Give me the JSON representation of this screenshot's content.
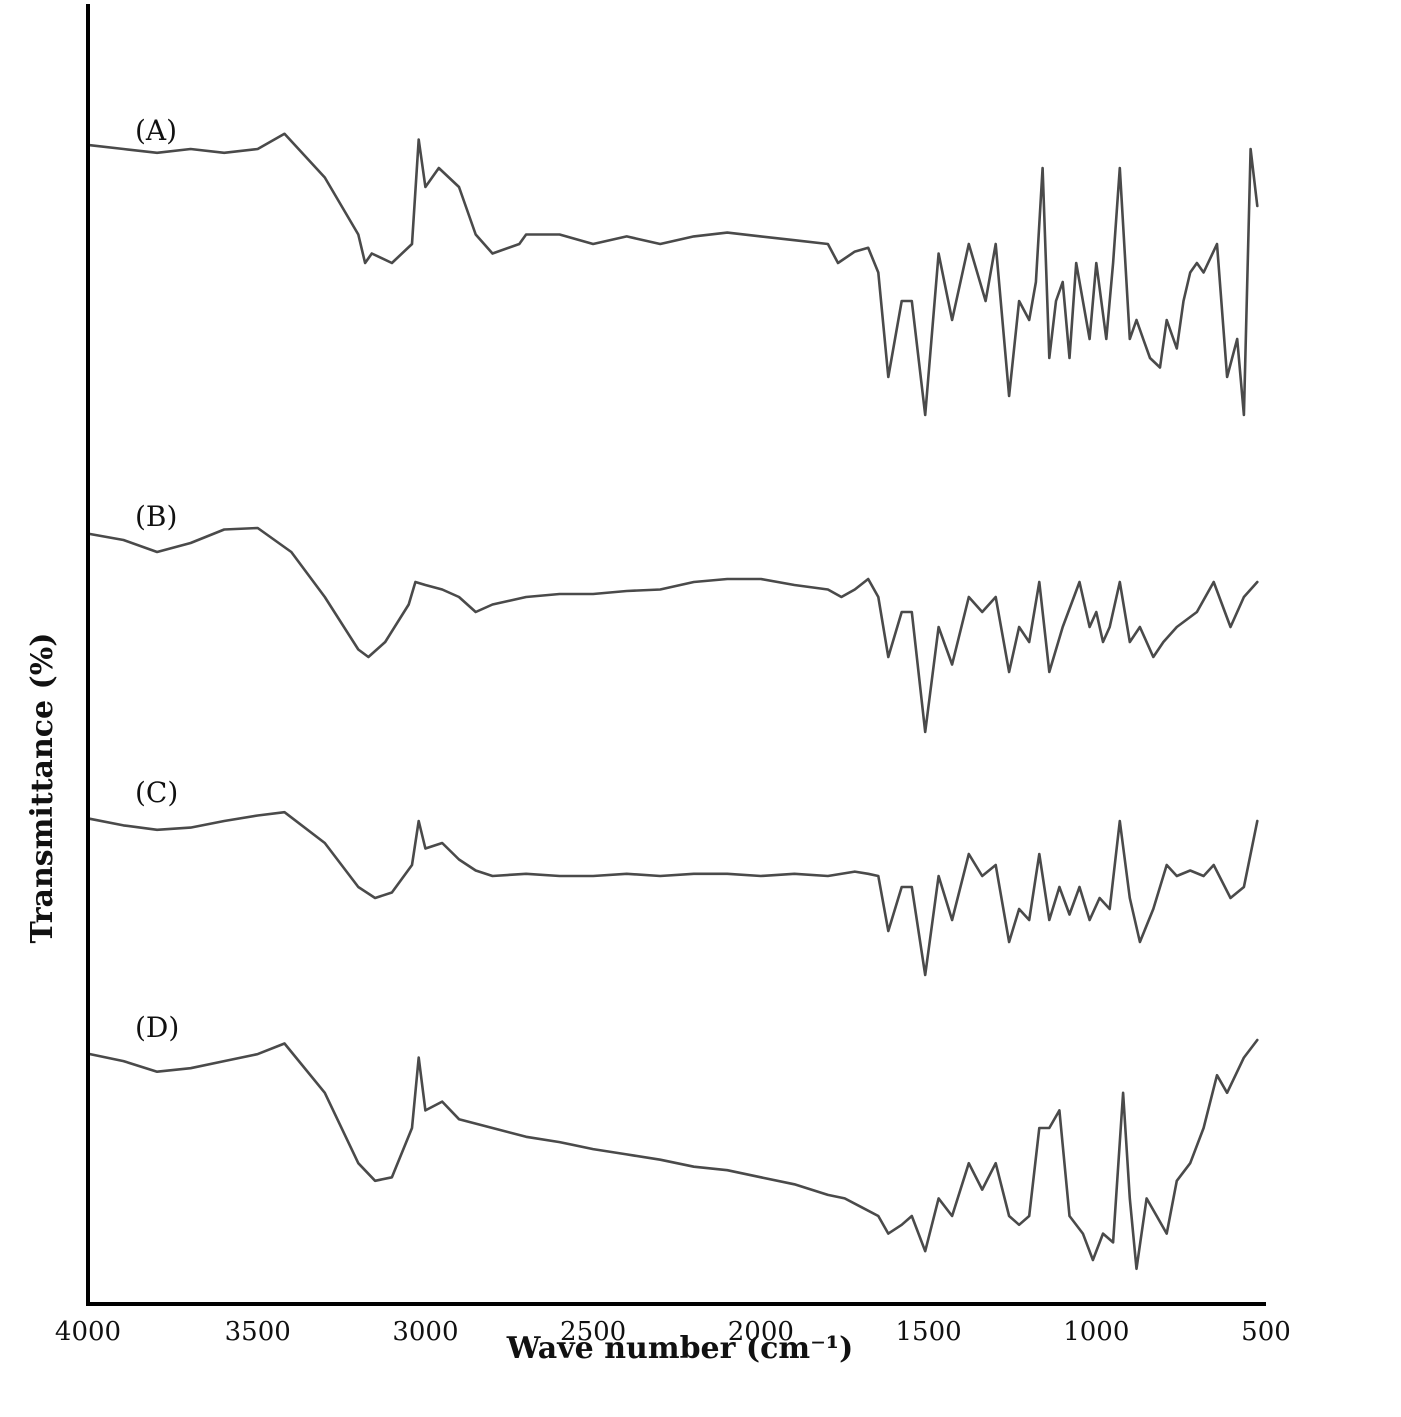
{
  "chart_data": {
    "type": "line",
    "xlabel": "Wave number (cm⁻¹)",
    "ylabel": "Transmittance (%)",
    "xlim": [
      4000,
      500
    ],
    "x_reversed": true,
    "x_ticks": [
      "4000",
      "3500",
      "3000",
      "2500",
      "2000",
      "1500",
      "1000",
      "500"
    ],
    "y_ticks_shown": false,
    "grid": false,
    "series": [
      {
        "name": "(A)",
        "points": [
          [
            4000,
            0.92
          ],
          [
            3900,
            0.9
          ],
          [
            3800,
            0.88
          ],
          [
            3700,
            0.9
          ],
          [
            3600,
            0.88
          ],
          [
            3500,
            0.9
          ],
          [
            3420,
            0.98
          ],
          [
            3300,
            0.75
          ],
          [
            3200,
            0.45
          ],
          [
            3180,
            0.3
          ],
          [
            3160,
            0.35
          ],
          [
            3100,
            0.3
          ],
          [
            3040,
            0.4
          ],
          [
            3020,
            0.95
          ],
          [
            3000,
            0.7
          ],
          [
            2960,
            0.8
          ],
          [
            2900,
            0.7
          ],
          [
            2850,
            0.45
          ],
          [
            2800,
            0.35
          ],
          [
            2720,
            0.4
          ],
          [
            2700,
            0.45
          ],
          [
            2600,
            0.45
          ],
          [
            2500,
            0.4
          ],
          [
            2400,
            0.44
          ],
          [
            2300,
            0.4
          ],
          [
            2200,
            0.44
          ],
          [
            2100,
            0.46
          ],
          [
            2000,
            0.44
          ],
          [
            1900,
            0.42
          ],
          [
            1800,
            0.4
          ],
          [
            1770,
            0.3
          ],
          [
            1720,
            0.36
          ],
          [
            1680,
            0.38
          ],
          [
            1650,
            0.25
          ],
          [
            1620,
            -0.3
          ],
          [
            1580,
            0.1
          ],
          [
            1550,
            0.1
          ],
          [
            1510,
            -0.5
          ],
          [
            1470,
            0.35
          ],
          [
            1430,
            0.0
          ],
          [
            1380,
            0.4
          ],
          [
            1330,
            0.1
          ],
          [
            1300,
            0.4
          ],
          [
            1260,
            -0.4
          ],
          [
            1230,
            0.1
          ],
          [
            1200,
            0.0
          ],
          [
            1180,
            0.2
          ],
          [
            1160,
            0.8
          ],
          [
            1140,
            -0.2
          ],
          [
            1120,
            0.1
          ],
          [
            1100,
            0.2
          ],
          [
            1080,
            -0.2
          ],
          [
            1060,
            0.3
          ],
          [
            1020,
            -0.1
          ],
          [
            1000,
            0.3
          ],
          [
            970,
            -0.1
          ],
          [
            950,
            0.3
          ],
          [
            930,
            0.8
          ],
          [
            900,
            -0.1
          ],
          [
            880,
            0.0
          ],
          [
            860,
            -0.1
          ],
          [
            840,
            -0.2
          ],
          [
            810,
            -0.25
          ],
          [
            790,
            0.0
          ],
          [
            760,
            -0.15
          ],
          [
            740,
            0.1
          ],
          [
            720,
            0.25
          ],
          [
            700,
            0.3
          ],
          [
            680,
            0.25
          ],
          [
            640,
            0.4
          ],
          [
            610,
            -0.3
          ],
          [
            580,
            -0.1
          ],
          [
            560,
            -0.5
          ],
          [
            540,
            0.9
          ],
          [
            520,
            0.6
          ]
        ]
      },
      {
        "name": "(B)",
        "points": [
          [
            4000,
            0.92
          ],
          [
            3900,
            0.88
          ],
          [
            3800,
            0.8
          ],
          [
            3700,
            0.86
          ],
          [
            3600,
            0.95
          ],
          [
            3500,
            0.96
          ],
          [
            3400,
            0.8
          ],
          [
            3300,
            0.5
          ],
          [
            3200,
            0.15
          ],
          [
            3170,
            0.1
          ],
          [
            3120,
            0.2
          ],
          [
            3050,
            0.45
          ],
          [
            3030,
            0.6
          ],
          [
            3000,
            0.58
          ],
          [
            2950,
            0.55
          ],
          [
            2900,
            0.5
          ],
          [
            2850,
            0.4
          ],
          [
            2800,
            0.45
          ],
          [
            2700,
            0.5
          ],
          [
            2600,
            0.52
          ],
          [
            2500,
            0.52
          ],
          [
            2400,
            0.54
          ],
          [
            2300,
            0.55
          ],
          [
            2200,
            0.6
          ],
          [
            2100,
            0.62
          ],
          [
            2000,
            0.62
          ],
          [
            1900,
            0.58
          ],
          [
            1800,
            0.55
          ],
          [
            1760,
            0.5
          ],
          [
            1720,
            0.55
          ],
          [
            1680,
            0.62
          ],
          [
            1650,
            0.5
          ],
          [
            1620,
            0.1
          ],
          [
            1580,
            0.4
          ],
          [
            1550,
            0.4
          ],
          [
            1510,
            -0.4
          ],
          [
            1470,
            0.3
          ],
          [
            1430,
            0.05
          ],
          [
            1380,
            0.5
          ],
          [
            1340,
            0.4
          ],
          [
            1300,
            0.5
          ],
          [
            1260,
            0.0
          ],
          [
            1230,
            0.3
          ],
          [
            1200,
            0.2
          ],
          [
            1170,
            0.6
          ],
          [
            1140,
            0.0
          ],
          [
            1100,
            0.3
          ],
          [
            1050,
            0.6
          ],
          [
            1020,
            0.3
          ],
          [
            1000,
            0.4
          ],
          [
            980,
            0.2
          ],
          [
            960,
            0.3
          ],
          [
            930,
            0.6
          ],
          [
            900,
            0.2
          ],
          [
            870,
            0.3
          ],
          [
            830,
            0.1
          ],
          [
            800,
            0.2
          ],
          [
            760,
            0.3
          ],
          [
            700,
            0.4
          ],
          [
            650,
            0.6
          ],
          [
            600,
            0.3
          ],
          [
            560,
            0.5
          ],
          [
            520,
            0.6
          ]
        ]
      },
      {
        "name": "(C)",
        "points": [
          [
            4000,
            0.92
          ],
          [
            3900,
            0.86
          ],
          [
            3800,
            0.82
          ],
          [
            3700,
            0.84
          ],
          [
            3600,
            0.9
          ],
          [
            3500,
            0.95
          ],
          [
            3420,
            0.98
          ],
          [
            3300,
            0.7
          ],
          [
            3200,
            0.3
          ],
          [
            3150,
            0.2
          ],
          [
            3100,
            0.25
          ],
          [
            3040,
            0.5
          ],
          [
            3020,
            0.9
          ],
          [
            3000,
            0.65
          ],
          [
            2950,
            0.7
          ],
          [
            2900,
            0.55
          ],
          [
            2850,
            0.45
          ],
          [
            2800,
            0.4
          ],
          [
            2700,
            0.42
          ],
          [
            2600,
            0.4
          ],
          [
            2500,
            0.4
          ],
          [
            2400,
            0.42
          ],
          [
            2300,
            0.4
          ],
          [
            2200,
            0.42
          ],
          [
            2100,
            0.42
          ],
          [
            2000,
            0.4
          ],
          [
            1900,
            0.42
          ],
          [
            1800,
            0.4
          ],
          [
            1720,
            0.44
          ],
          [
            1680,
            0.42
          ],
          [
            1650,
            0.4
          ],
          [
            1620,
            -0.1
          ],
          [
            1580,
            0.3
          ],
          [
            1550,
            0.3
          ],
          [
            1510,
            -0.5
          ],
          [
            1470,
            0.4
          ],
          [
            1430,
            0.0
          ],
          [
            1380,
            0.6
          ],
          [
            1340,
            0.4
          ],
          [
            1300,
            0.5
          ],
          [
            1260,
            -0.2
          ],
          [
            1230,
            0.1
          ],
          [
            1200,
            0.0
          ],
          [
            1170,
            0.6
          ],
          [
            1140,
            0.0
          ],
          [
            1110,
            0.3
          ],
          [
            1080,
            0.05
          ],
          [
            1050,
            0.3
          ],
          [
            1020,
            0.0
          ],
          [
            990,
            0.2
          ],
          [
            960,
            0.1
          ],
          [
            930,
            0.9
          ],
          [
            900,
            0.2
          ],
          [
            870,
            -0.2
          ],
          [
            830,
            0.1
          ],
          [
            790,
            0.5
          ],
          [
            760,
            0.4
          ],
          [
            720,
            0.45
          ],
          [
            680,
            0.4
          ],
          [
            650,
            0.5
          ],
          [
            600,
            0.2
          ],
          [
            560,
            0.3
          ],
          [
            520,
            0.9
          ]
        ]
      },
      {
        "name": "(D)",
        "points": [
          [
            4000,
            0.92
          ],
          [
            3900,
            0.88
          ],
          [
            3800,
            0.82
          ],
          [
            3700,
            0.84
          ],
          [
            3600,
            0.88
          ],
          [
            3500,
            0.92
          ],
          [
            3420,
            0.98
          ],
          [
            3300,
            0.7
          ],
          [
            3200,
            0.3
          ],
          [
            3150,
            0.2
          ],
          [
            3100,
            0.22
          ],
          [
            3040,
            0.5
          ],
          [
            3020,
            0.9
          ],
          [
            3000,
            0.6
          ],
          [
            2950,
            0.65
          ],
          [
            2900,
            0.55
          ],
          [
            2800,
            0.5
          ],
          [
            2700,
            0.45
          ],
          [
            2600,
            0.42
          ],
          [
            2500,
            0.38
          ],
          [
            2400,
            0.35
          ],
          [
            2300,
            0.32
          ],
          [
            2200,
            0.28
          ],
          [
            2100,
            0.26
          ],
          [
            2000,
            0.22
          ],
          [
            1900,
            0.18
          ],
          [
            1800,
            0.12
          ],
          [
            1750,
            0.1
          ],
          [
            1700,
            0.05
          ],
          [
            1650,
            0.0
          ],
          [
            1620,
            -0.1
          ],
          [
            1580,
            -0.05
          ],
          [
            1550,
            0.0
          ],
          [
            1510,
            -0.2
          ],
          [
            1470,
            0.1
          ],
          [
            1430,
            0.0
          ],
          [
            1380,
            0.3
          ],
          [
            1340,
            0.15
          ],
          [
            1300,
            0.3
          ],
          [
            1260,
            0.0
          ],
          [
            1230,
            -0.05
          ],
          [
            1200,
            0.0
          ],
          [
            1170,
            0.5
          ],
          [
            1140,
            0.5
          ],
          [
            1110,
            0.6
          ],
          [
            1080,
            0.0
          ],
          [
            1040,
            -0.1
          ],
          [
            1010,
            -0.25
          ],
          [
            980,
            -0.1
          ],
          [
            950,
            -0.15
          ],
          [
            920,
            0.7
          ],
          [
            900,
            0.1
          ],
          [
            880,
            -0.3
          ],
          [
            850,
            0.1
          ],
          [
            820,
            0.0
          ],
          [
            790,
            -0.1
          ],
          [
            760,
            0.2
          ],
          [
            720,
            0.3
          ],
          [
            680,
            0.5
          ],
          [
            640,
            0.8
          ],
          [
            610,
            0.7
          ],
          [
            560,
            0.9
          ],
          [
            520,
            1.0
          ]
        ]
      }
    ]
  }
}
